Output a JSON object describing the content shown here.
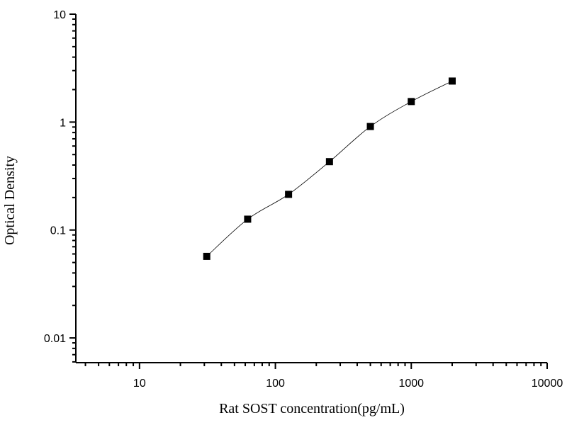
{
  "chart_data": {
    "type": "scatter",
    "title": "",
    "xlabel": "Rat SOST concentration(pg/mL)",
    "ylabel": "Optical Density",
    "x_scale": "log",
    "y_scale": "log",
    "xlim": [
      3.4,
      10000
    ],
    "ylim": [
      0.0059,
      10
    ],
    "x_ticks": [
      10,
      100,
      1000,
      10000
    ],
    "x_tick_labels": [
      "10",
      "100",
      "1000",
      "10000"
    ],
    "y_ticks": [
      0.01,
      0.1,
      1,
      10
    ],
    "y_tick_labels": [
      "0.01",
      "0.1",
      "1",
      "10"
    ],
    "grid": false,
    "marker": "square",
    "fit_curve": true,
    "colors": {
      "marker": "#000000",
      "curve": "#000000",
      "axis": "#000000"
    },
    "series": [
      {
        "x": [
          31.25,
          62.5,
          125,
          250,
          500,
          1000,
          2000
        ],
        "y": [
          0.057,
          0.126,
          0.214,
          0.43,
          0.91,
          1.55,
          2.4
        ]
      }
    ]
  }
}
